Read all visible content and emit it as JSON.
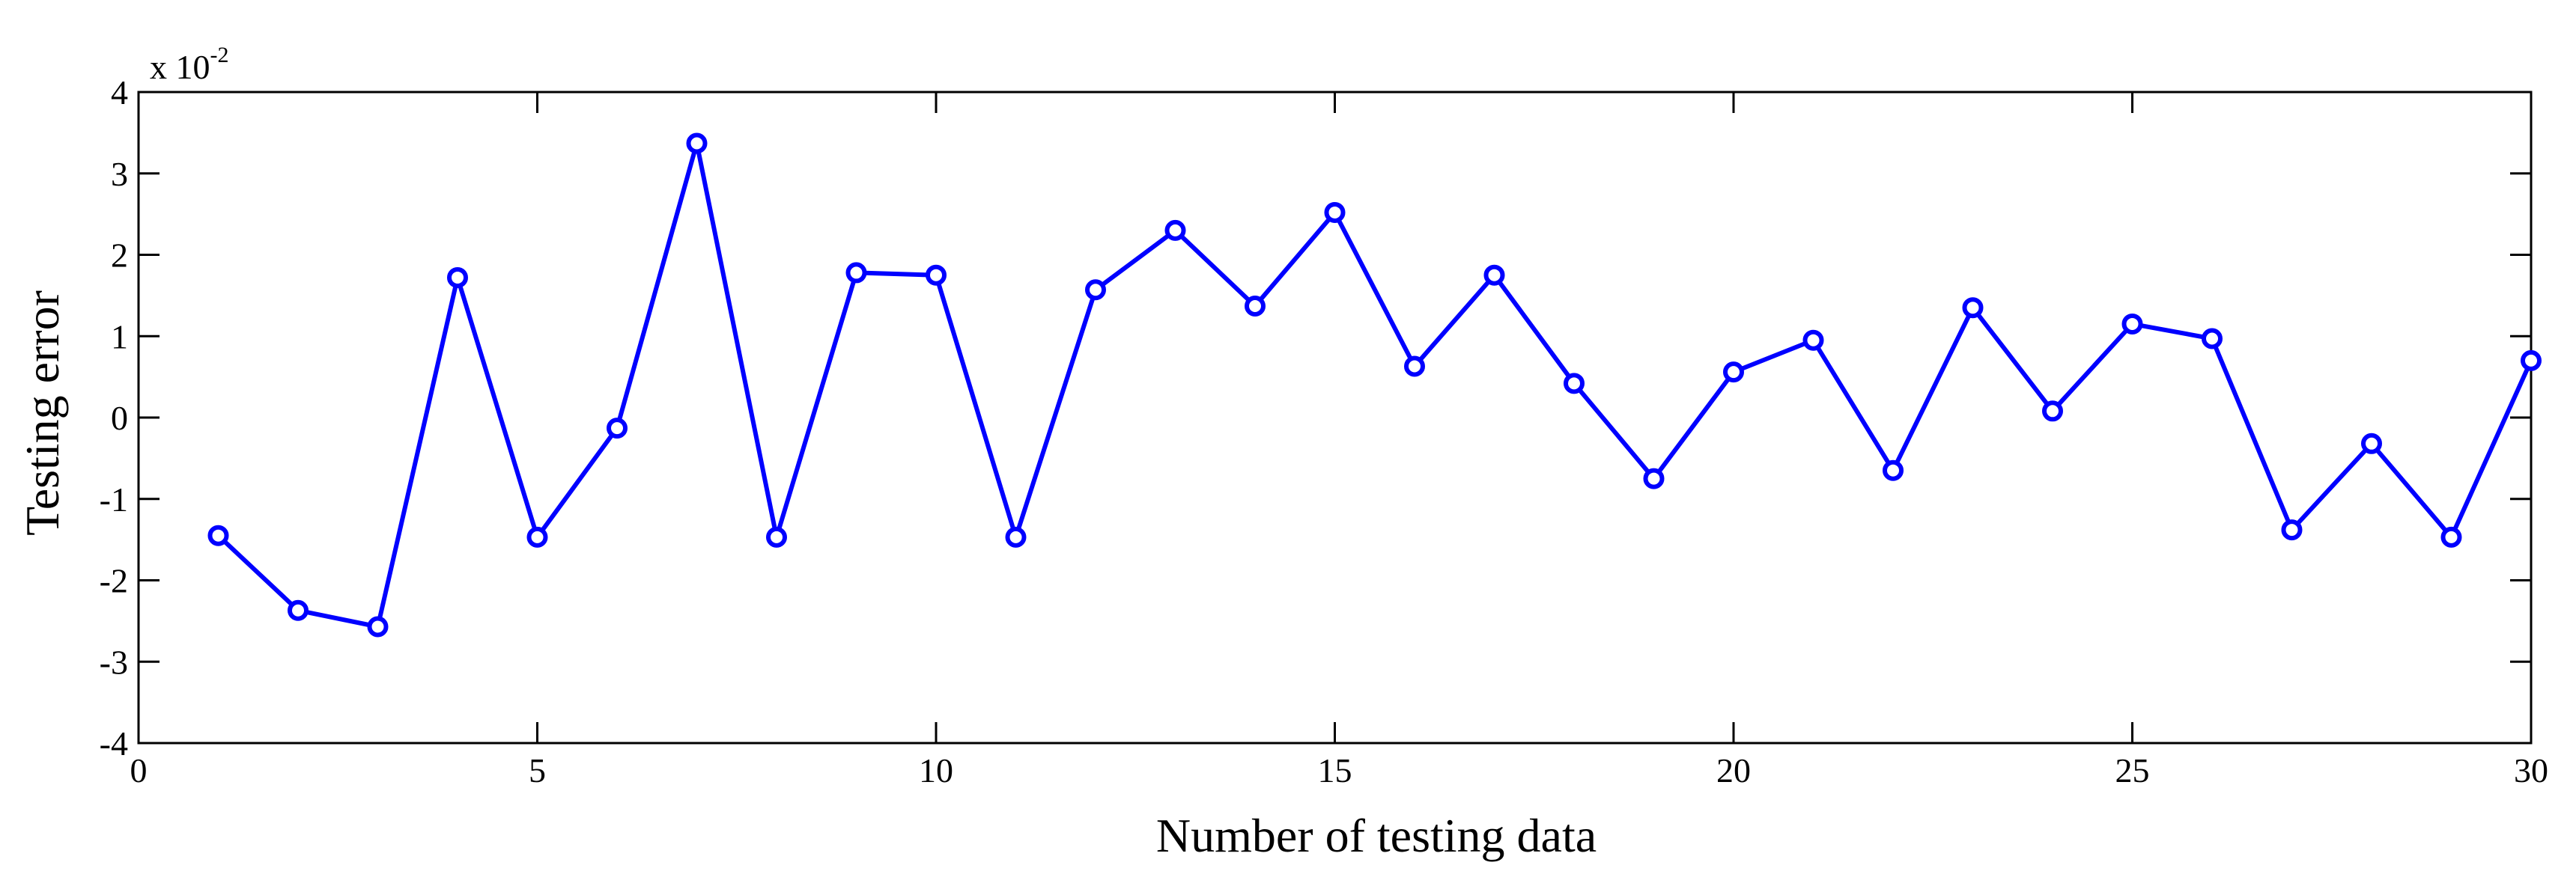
{
  "chart_data": {
    "type": "line",
    "xlabel": "Number of testing data",
    "ylabel": "Testing error",
    "y_multiplier_base": "x 10",
    "y_multiplier_exponent": "-2",
    "xlim": [
      0,
      30
    ],
    "ylim": [
      -4,
      4
    ],
    "x_ticks": [
      0,
      5,
      10,
      15,
      20,
      25,
      30
    ],
    "y_ticks": [
      -4,
      -3,
      -2,
      -1,
      0,
      1,
      2,
      3,
      4
    ],
    "grid": false,
    "marker": "circle",
    "line_color": "#0000ff",
    "series": [
      {
        "x": [
          1,
          2,
          3,
          4,
          5,
          6,
          7,
          8,
          9,
          10,
          11,
          12,
          13,
          14,
          15,
          16,
          17,
          18,
          19,
          20,
          21,
          22,
          23,
          24,
          25,
          26,
          27,
          28,
          29,
          30
        ],
        "values": [
          -1.45,
          -2.37,
          -2.57,
          1.72,
          -1.47,
          -0.13,
          3.37,
          -1.47,
          1.78,
          1.75,
          -1.47,
          1.57,
          2.3,
          1.37,
          2.52,
          0.63,
          1.75,
          0.42,
          -0.75,
          0.56,
          0.95,
          -0.65,
          1.35,
          0.08,
          1.15,
          0.97,
          -1.38,
          -0.32,
          -1.47,
          0.7
        ]
      }
    ]
  }
}
